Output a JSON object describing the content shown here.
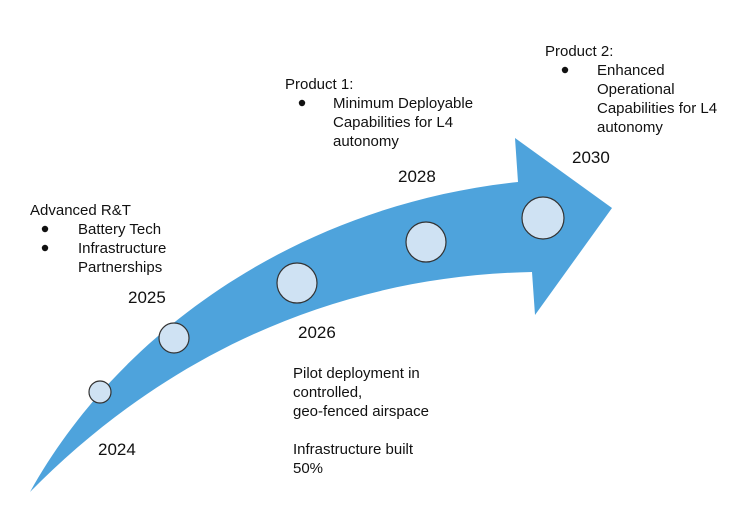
{
  "milestones": [
    {
      "year": "2024"
    },
    {
      "year": "2025"
    },
    {
      "year": "2026"
    },
    {
      "year": "2028"
    },
    {
      "year": "2030"
    }
  ],
  "notes": [
    {
      "heading": "Advanced R&T",
      "bullets": [
        [
          "Battery Tech"
        ],
        [
          "Infrastructure",
          "Partnerships"
        ]
      ]
    },
    {
      "heading": "Product 1:",
      "bullets": [
        [
          "Minimum Deployable",
          "Capabilities for L4",
          "autonomy"
        ]
      ]
    },
    {
      "heading": "Product 2:",
      "bullets": [
        [
          "Enhanced",
          "Operational",
          "Capabilities for L4",
          "autonomy"
        ]
      ]
    },
    {
      "paragraphs": [
        [
          "Pilot deployment in",
          "controlled,",
          "geo-fenced airspace"
        ],
        [
          "Infrastructure built",
          "50%"
        ]
      ]
    }
  ]
}
